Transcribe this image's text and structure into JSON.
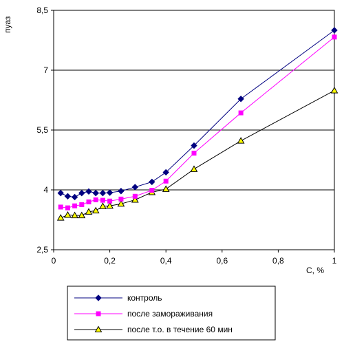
{
  "chart_data": {
    "type": "line",
    "title": "",
    "xlabel": "C, %",
    "ylabel": "пуаз",
    "xlim": [
      0,
      1
    ],
    "ylim": [
      2.5,
      8.5
    ],
    "x_ticks": [
      "0",
      "0,2",
      "0,4",
      "0,6",
      "0,8",
      "1"
    ],
    "y_ticks": [
      "2,5",
      "4",
      "5,5",
      "7",
      "8,5"
    ],
    "grid": "horizontal",
    "legend_position": "bottom",
    "series": [
      {
        "name": "контроль",
        "color": "#000080",
        "marker": "diamond",
        "x": [
          0.025,
          0.05,
          0.075,
          0.1,
          0.125,
          0.15,
          0.175,
          0.2,
          0.24,
          0.29,
          0.35,
          0.4,
          0.5,
          0.667,
          1.0
        ],
        "y": [
          3.92,
          3.84,
          3.82,
          3.92,
          3.96,
          3.92,
          3.92,
          3.93,
          3.97,
          4.07,
          4.2,
          4.44,
          5.11,
          6.28,
          8.0
        ]
      },
      {
        "name": "после замораживания",
        "color": "#ff00ff",
        "marker": "square",
        "x": [
          0.025,
          0.05,
          0.075,
          0.1,
          0.125,
          0.15,
          0.175,
          0.2,
          0.24,
          0.29,
          0.35,
          0.4,
          0.5,
          0.667,
          1.0
        ],
        "y": [
          3.57,
          3.55,
          3.6,
          3.63,
          3.7,
          3.75,
          3.74,
          3.72,
          3.77,
          3.84,
          3.99,
          4.22,
          4.92,
          5.93,
          7.83
        ]
      },
      {
        "name": "после т.о. в течение 60 мин",
        "color": "#000000",
        "marker_fill": "#ffff00",
        "marker": "triangle",
        "x": [
          0.025,
          0.05,
          0.075,
          0.1,
          0.125,
          0.15,
          0.175,
          0.2,
          0.24,
          0.29,
          0.35,
          0.4,
          0.5,
          0.667,
          1.0
        ],
        "y": [
          3.3,
          3.37,
          3.36,
          3.36,
          3.45,
          3.48,
          3.59,
          3.6,
          3.65,
          3.75,
          3.94,
          4.02,
          4.52,
          5.23,
          6.49
        ]
      }
    ]
  }
}
